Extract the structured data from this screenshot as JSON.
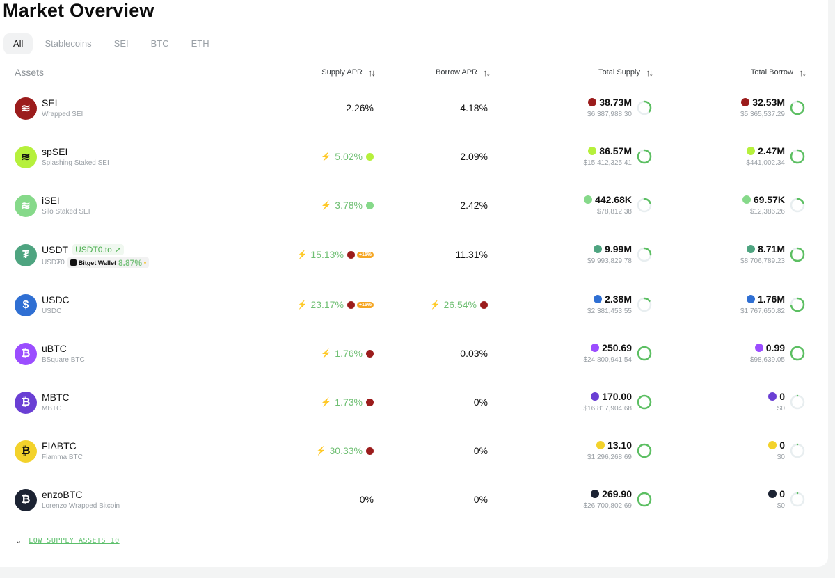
{
  "page": {
    "title": "Market Overview"
  },
  "tabs": [
    "All",
    "Stablecoins",
    "SEI",
    "BTC",
    "ETH"
  ],
  "active_tab": "All",
  "columns": {
    "assets": "Assets",
    "supply_apr": "Supply APR",
    "borrow_apr": "Borrow APR",
    "total_supply": "Total Supply",
    "total_borrow": "Total Borrow"
  },
  "colors": {
    "accent_green": "#4caf50",
    "muted": "#9aa0a6"
  },
  "assets": [
    {
      "name": "SEI",
      "subtitle": "Wrapped SEI",
      "icon": "sei-icon",
      "color": "#9b1c1c",
      "supply_apr": "2.26%",
      "supply_boosted": false,
      "borrow_apr": "4.18%",
      "borrow_boosted": false,
      "total_supply": "38.73M",
      "total_supply_usd": "$6,387,988.30",
      "supply_util": 0.35,
      "total_borrow": "32.53M",
      "total_borrow_usd": "$5,365,537.29",
      "borrow_util": 0.84
    },
    {
      "name": "spSEI",
      "subtitle": "Splashing Staked SEI",
      "icon": "spsei-icon",
      "color": "#b6f03c",
      "supply_apr": "5.02%",
      "supply_boosted": true,
      "borrow_apr": "2.09%",
      "borrow_boosted": false,
      "total_supply": "86.57M",
      "total_supply_usd": "$15,412,325.41",
      "supply_util": 0.85,
      "total_borrow": "2.47M",
      "total_borrow_usd": "$441,002.34",
      "borrow_util": 0.84
    },
    {
      "name": "iSEI",
      "subtitle": "Silo Staked SEI",
      "icon": "isei-icon",
      "color": "#86d98a",
      "supply_apr": "3.78%",
      "supply_boosted": true,
      "borrow_apr": "2.42%",
      "borrow_boosted": false,
      "total_supply": "442.68K",
      "total_supply_usd": "$78,812.38",
      "supply_util": 0.2,
      "total_borrow": "69.57K",
      "total_borrow_usd": "$12,386.26",
      "borrow_util": 0.2
    },
    {
      "name": "USDT",
      "subtitle": "USD₮0",
      "icon": "tether-icon",
      "color": "#4ea480",
      "ext_link": "USDT0.to ↗",
      "wallet_name": "Bitget Wallet",
      "wallet_apr": "8.87%",
      "supply_apr": "15.13%",
      "supply_boosted": true,
      "supply_badge": "+15%",
      "borrow_apr": "11.31%",
      "borrow_boosted": false,
      "total_supply": "9.99M",
      "total_supply_usd": "$9,993,829.78",
      "supply_util": 0.25,
      "total_borrow": "8.71M",
      "total_borrow_usd": "$8,706,789.23",
      "borrow_util": 0.85
    },
    {
      "name": "USDC",
      "subtitle": "USDC",
      "icon": "usdc-icon",
      "color": "#2f6fd3",
      "supply_apr": "23.17%",
      "supply_boosted": true,
      "supply_badge": "+15%",
      "borrow_apr": "26.54%",
      "borrow_boosted": true,
      "total_supply": "2.38M",
      "total_supply_usd": "$2,381,453.55",
      "supply_util": 0.15,
      "total_borrow": "1.76M",
      "total_borrow_usd": "$1,767,650.82",
      "borrow_util": 0.72
    },
    {
      "name": "uBTC",
      "subtitle": "BSquare BTC",
      "icon": "ubtc-icon",
      "color": "#9b4dff",
      "supply_apr": "1.76%",
      "supply_boosted": true,
      "borrow_apr": "0.03%",
      "borrow_boosted": false,
      "total_supply": "250.69",
      "total_supply_usd": "$24,800,941.54",
      "supply_util": 0.99,
      "total_borrow": "0.99",
      "total_borrow_usd": "$98,639.05",
      "borrow_util": 0.99
    },
    {
      "name": "MBTC",
      "subtitle": "MBTC",
      "icon": "mbtc-icon",
      "color": "#6a3fd4",
      "supply_apr": "1.73%",
      "supply_boosted": true,
      "borrow_apr": "0%",
      "borrow_boosted": false,
      "total_supply": "170.00",
      "total_supply_usd": "$16,817,904.68",
      "supply_util": 0.99,
      "total_borrow": "0",
      "total_borrow_usd": "$0",
      "borrow_util": 0
    },
    {
      "name": "FIABTC",
      "subtitle": "Fiamma BTC",
      "icon": "fiabtc-icon",
      "color": "#f3d22b",
      "supply_apr": "30.33%",
      "supply_boosted": true,
      "borrow_apr": "0%",
      "borrow_boosted": false,
      "total_supply": "13.10",
      "total_supply_usd": "$1,296,268.69",
      "supply_util": 0.99,
      "total_borrow": "0",
      "total_borrow_usd": "$0",
      "borrow_util": 0
    },
    {
      "name": "enzoBTC",
      "subtitle": "Lorenzo Wrapped Bitcoin",
      "icon": "enzobtc-icon",
      "color": "#1c2333",
      "supply_apr": "0%",
      "supply_boosted": false,
      "borrow_apr": "0%",
      "borrow_boosted": false,
      "total_supply": "269.90",
      "total_supply_usd": "$26,700,802.69",
      "supply_util": 0.99,
      "total_borrow": "0",
      "total_borrow_usd": "$0",
      "borrow_util": 0
    }
  ],
  "footer": {
    "low_supply_label": "LOW SUPPLY ASSETS 10"
  }
}
